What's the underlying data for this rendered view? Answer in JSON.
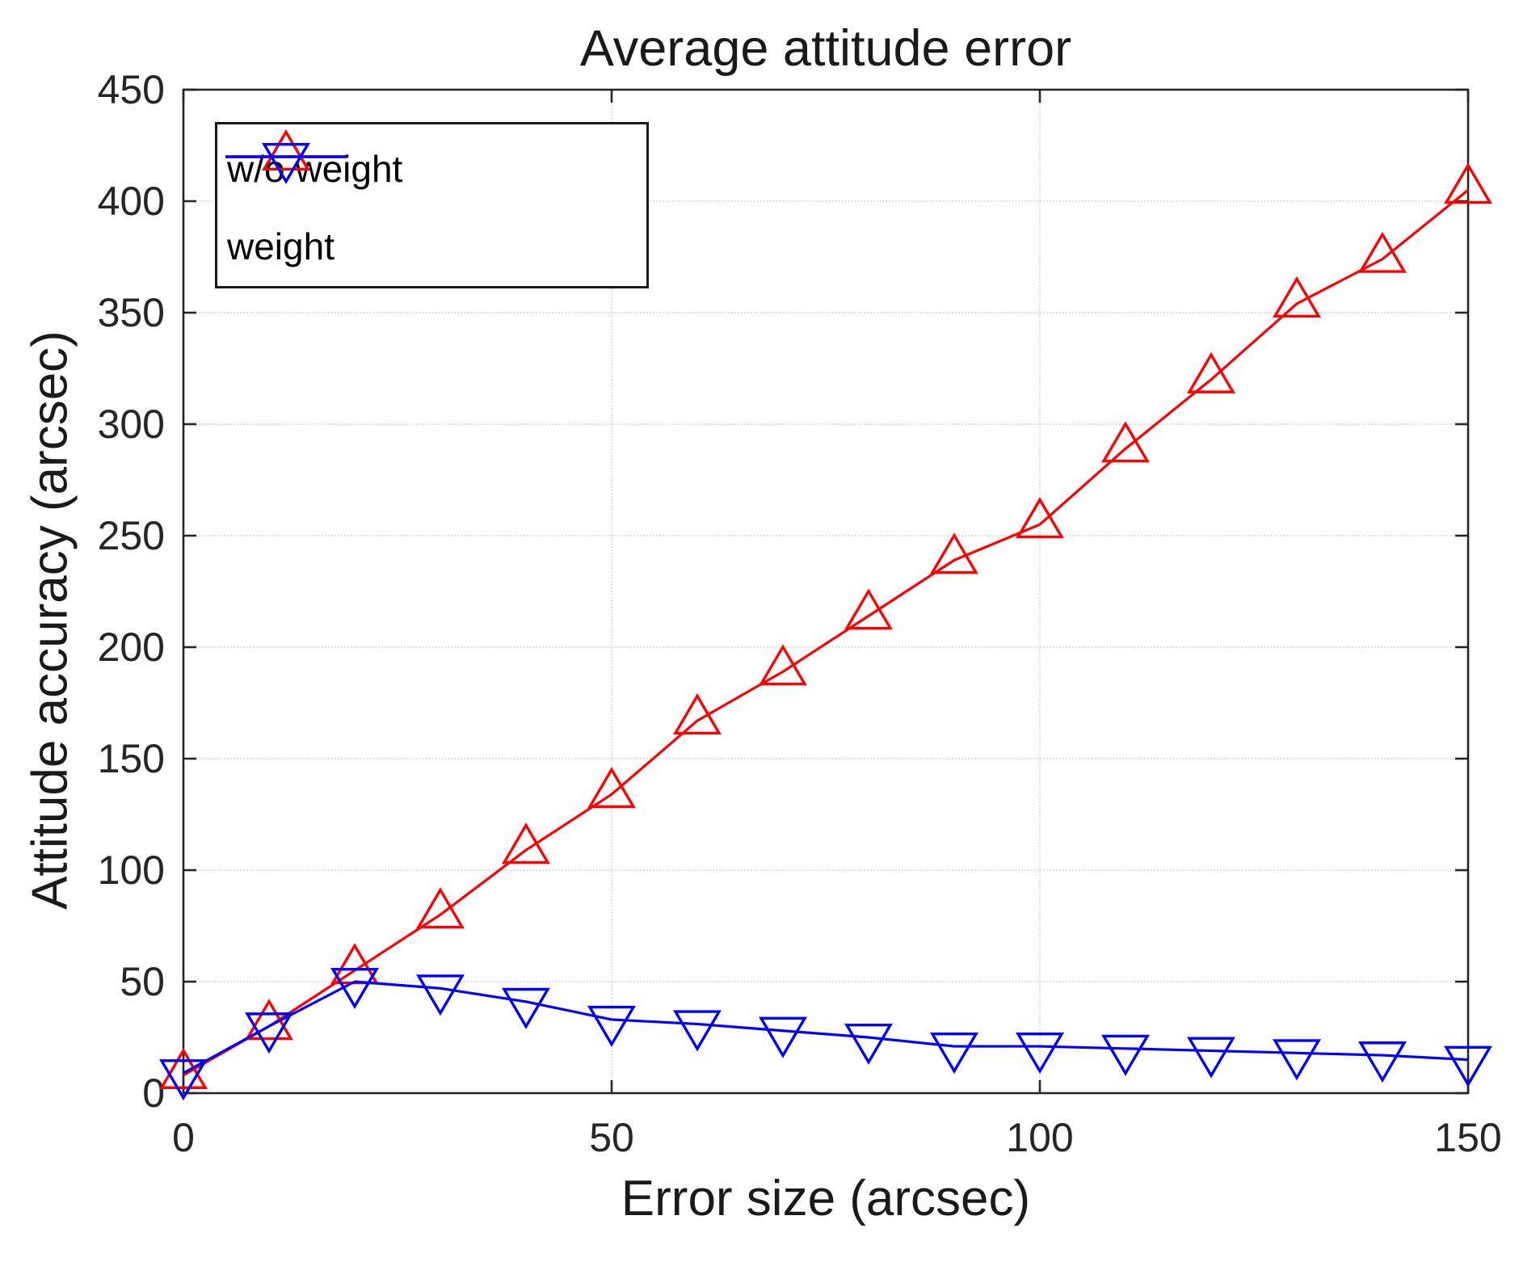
{
  "title": "Average attitude error",
  "axes": {
    "xlabel": "Error size (arcsec)",
    "ylabel": "Attitude accuracy (arcsec)",
    "x_tick_labels": [
      "0",
      "50",
      "100",
      "150"
    ],
    "y_tick_labels": [
      "0",
      "50",
      "100",
      "150",
      "200",
      "250",
      "300",
      "350",
      "400",
      "450"
    ]
  },
  "legend": {
    "entries": [
      {
        "label": "w/o weight",
        "color": "#ff0000",
        "marker": "triangle-up"
      },
      {
        "label": "weight",
        "color": "#0000ff",
        "marker": "triangle-down"
      }
    ]
  },
  "colors": {
    "series_red": "#ff0000",
    "series_blue": "#0000ff",
    "axis": "#262626",
    "grid": "#c9c9c9",
    "background": "#ffffff"
  },
  "chart_data": {
    "type": "line",
    "title": "Average attitude error",
    "xlabel": "Error size (arcsec)",
    "ylabel": "Attitude accuracy (arcsec)",
    "xlim": [
      0,
      150
    ],
    "ylim": [
      0,
      450
    ],
    "x_ticks": [
      0,
      50,
      100,
      150
    ],
    "y_ticks": [
      0,
      50,
      100,
      150,
      200,
      250,
      300,
      350,
      400,
      450
    ],
    "grid": true,
    "legend_position": "upper-left",
    "x": [
      0,
      10,
      20,
      30,
      40,
      50,
      60,
      70,
      80,
      90,
      100,
      110,
      120,
      130,
      140,
      150
    ],
    "series": [
      {
        "name": "w/o weight",
        "color": "#ff0000",
        "marker": "triangle-up",
        "values": [
          8,
          30,
          55,
          80,
          109,
          134,
          167,
          189,
          214,
          239,
          255,
          289,
          320,
          354,
          374,
          405
        ]
      },
      {
        "name": "weight",
        "color": "#0000ff",
        "marker": "triangle-down",
        "values": [
          9,
          30,
          50,
          47,
          41,
          33,
          31,
          28,
          25,
          21,
          21,
          20,
          19,
          18,
          17,
          15
        ]
      }
    ]
  }
}
